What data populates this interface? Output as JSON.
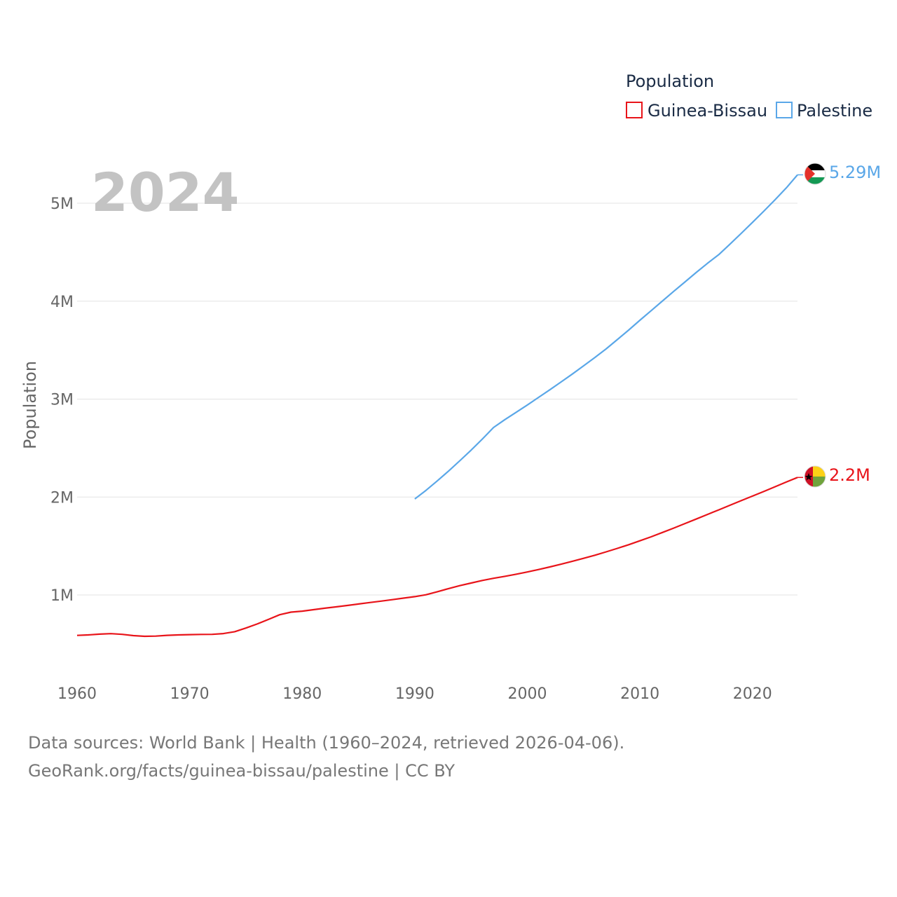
{
  "chart_data": {
    "type": "line",
    "year_label": "2024",
    "ylabel": "Population",
    "legend_title": "Population",
    "xlim": [
      1960,
      2024
    ],
    "ylim": [
      0,
      5000000
    ],
    "x_ticks": [
      1960,
      1970,
      1980,
      1990,
      2000,
      2010,
      2020
    ],
    "y_ticks": [
      {
        "value": 1000000,
        "label": "1M"
      },
      {
        "value": 2000000,
        "label": "2M"
      },
      {
        "value": 3000000,
        "label": "3M"
      },
      {
        "value": 4000000,
        "label": "4M"
      },
      {
        "value": 5000000,
        "label": "5M"
      }
    ],
    "series": [
      {
        "name": "Guinea-Bissau",
        "color": "#e8141a",
        "end_label": "2.2M",
        "flag": "guinea-bissau-flag-icon",
        "points": [
          [
            1960,
            587000
          ],
          [
            1961,
            592000
          ],
          [
            1962,
            600000
          ],
          [
            1963,
            605000
          ],
          [
            1964,
            598000
          ],
          [
            1965,
            585000
          ],
          [
            1966,
            578000
          ],
          [
            1967,
            580000
          ],
          [
            1968,
            588000
          ],
          [
            1969,
            592000
          ],
          [
            1970,
            595000
          ],
          [
            1971,
            597000
          ],
          [
            1972,
            598000
          ],
          [
            1973,
            606000
          ],
          [
            1974,
            625000
          ],
          [
            1975,
            662000
          ],
          [
            1976,
            704000
          ],
          [
            1977,
            750000
          ],
          [
            1978,
            798000
          ],
          [
            1979,
            825000
          ],
          [
            1980,
            835000
          ],
          [
            1981,
            850000
          ],
          [
            1982,
            865000
          ],
          [
            1983,
            878000
          ],
          [
            1984,
            893000
          ],
          [
            1985,
            908000
          ],
          [
            1986,
            923000
          ],
          [
            1987,
            937000
          ],
          [
            1988,
            952000
          ],
          [
            1989,
            968000
          ],
          [
            1990,
            983000
          ],
          [
            1991,
            1002000
          ],
          [
            1992,
            1033000
          ],
          [
            1993,
            1065000
          ],
          [
            1994,
            1095000
          ],
          [
            1995,
            1122000
          ],
          [
            1996,
            1148000
          ],
          [
            1997,
            1170000
          ],
          [
            1998,
            1190000
          ],
          [
            1999,
            1212000
          ],
          [
            2000,
            1235000
          ],
          [
            2001,
            1260000
          ],
          [
            2002,
            1286000
          ],
          [
            2003,
            1314000
          ],
          [
            2004,
            1344000
          ],
          [
            2005,
            1374000
          ],
          [
            2006,
            1406000
          ],
          [
            2007,
            1440000
          ],
          [
            2008,
            1476000
          ],
          [
            2009,
            1513000
          ],
          [
            2010,
            1553000
          ],
          [
            2011,
            1594000
          ],
          [
            2012,
            1638000
          ],
          [
            2013,
            1683000
          ],
          [
            2014,
            1729000
          ],
          [
            2015,
            1775000
          ],
          [
            2016,
            1822000
          ],
          [
            2017,
            1869000
          ],
          [
            2018,
            1916000
          ],
          [
            2019,
            1963000
          ],
          [
            2020,
            2010000
          ],
          [
            2021,
            2056000
          ],
          [
            2022,
            2105000
          ],
          [
            2023,
            2153000
          ],
          [
            2024,
            2200000
          ]
        ]
      },
      {
        "name": "Palestine",
        "color": "#5aa7e8",
        "end_label": "5.29M",
        "flag": "palestine-flag-icon",
        "points": [
          [
            1990,
            1980000
          ],
          [
            1991,
            2068000
          ],
          [
            1992,
            2165000
          ],
          [
            1993,
            2265000
          ],
          [
            1994,
            2370000
          ],
          [
            1995,
            2478000
          ],
          [
            1996,
            2592000
          ],
          [
            1997,
            2710000
          ],
          [
            1998,
            2790000
          ],
          [
            1999,
            2865000
          ],
          [
            2000,
            2940000
          ],
          [
            2001,
            3018000
          ],
          [
            2002,
            3095000
          ],
          [
            2003,
            3175000
          ],
          [
            2004,
            3256000
          ],
          [
            2005,
            3340000
          ],
          [
            2006,
            3425000
          ],
          [
            2007,
            3512000
          ],
          [
            2008,
            3608000
          ],
          [
            2009,
            3705000
          ],
          [
            2010,
            3805000
          ],
          [
            2011,
            3903000
          ],
          [
            2012,
            4002000
          ],
          [
            2013,
            4100000
          ],
          [
            2014,
            4196000
          ],
          [
            2015,
            4292000
          ],
          [
            2016,
            4386000
          ],
          [
            2017,
            4475000
          ],
          [
            2018,
            4582000
          ],
          [
            2019,
            4692000
          ],
          [
            2020,
            4805000
          ],
          [
            2021,
            4918000
          ],
          [
            2022,
            5035000
          ],
          [
            2023,
            5155000
          ],
          [
            2024,
            5290000
          ]
        ]
      }
    ]
  },
  "source": {
    "line1": "Data sources: World Bank | Health (1960–2024, retrieved 2026-04-06).",
    "line2": "GeoRank.org/facts/guinea-bissau/palestine | CC BY"
  }
}
